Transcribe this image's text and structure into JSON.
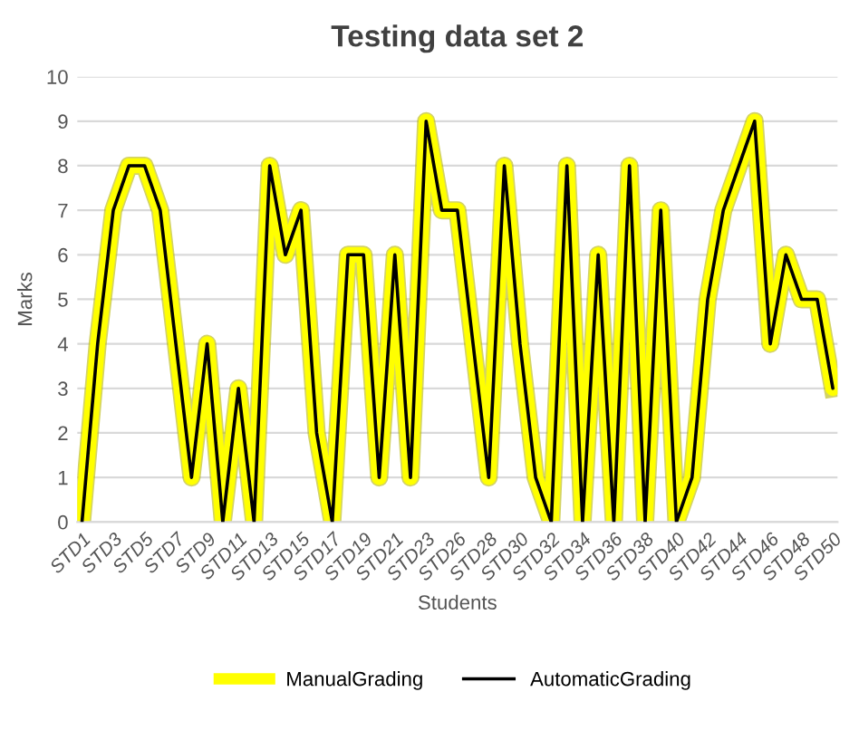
{
  "chart_data": {
    "type": "line",
    "title": "Testing data set 2",
    "xlabel": "Students",
    "ylabel": "Marks",
    "categories": [
      "STD1",
      null,
      "STD3",
      null,
      "STD5",
      null,
      "STD7",
      null,
      "STD9",
      null,
      "STD11",
      null,
      "STD13",
      null,
      "STD15",
      null,
      "STD17",
      null,
      "STD19",
      null,
      "STD21",
      null,
      "STD23",
      null,
      "STD26",
      null,
      "STD28",
      null,
      "STD30",
      null,
      "STD32",
      null,
      "STD34",
      null,
      "STD36",
      null,
      "STD38",
      null,
      "STD40",
      null,
      "STD42",
      null,
      "STD44",
      null,
      "STD46",
      null,
      "STD48",
      null,
      "STD50"
    ],
    "series": [
      {
        "name": "ManualGrading",
        "color": "#ffff00",
        "values": [
          0,
          4,
          7,
          8,
          8,
          7,
          4,
          1,
          4,
          0,
          3,
          0,
          8,
          6,
          7,
          2,
          0,
          6,
          6,
          1,
          6,
          1,
          9,
          7,
          7,
          4,
          1,
          8,
          4,
          1,
          0,
          8,
          0,
          6,
          0,
          8,
          0,
          7,
          0,
          1,
          5,
          7,
          8,
          9,
          4,
          6,
          5,
          5,
          3
        ]
      },
      {
        "name": "AutomaticGrading",
        "color": "#000000",
        "values": [
          0,
          4,
          7,
          8,
          8,
          7,
          4,
          1,
          4,
          0,
          3,
          0,
          8,
          6,
          7,
          2,
          0,
          6,
          6,
          1,
          6,
          1,
          9,
          7,
          7,
          4,
          1,
          8,
          4,
          1,
          0,
          8,
          0,
          6,
          0,
          8,
          0,
          7,
          0,
          1,
          5,
          7,
          8,
          9,
          4,
          6,
          5,
          5,
          3
        ]
      }
    ],
    "ylim": [
      0,
      10
    ],
    "yticks": [
      0,
      1,
      2,
      3,
      4,
      5,
      6,
      7,
      8,
      9,
      10
    ],
    "grid": "y",
    "legend": "bottom",
    "marker": "none",
    "line_style": "solid"
  }
}
